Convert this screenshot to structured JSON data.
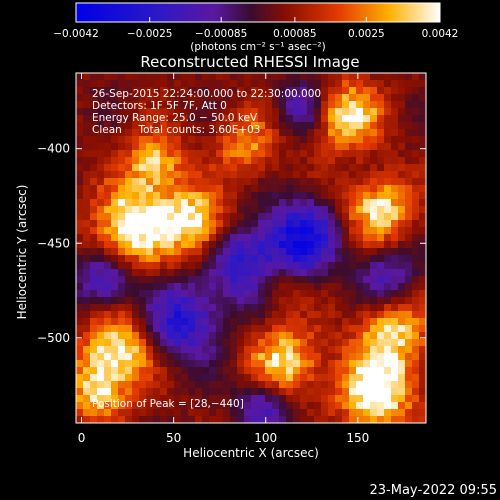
{
  "chart_data": {
    "type": "heatmap",
    "title": "Reconstructed RHESSI Image",
    "xlabel": "Heliocentric X (arcsec)",
    "ylabel": "Heliocentric Y (arcsec)",
    "xlim": [
      -3,
      187
    ],
    "ylim": [
      -545,
      -360
    ],
    "x_ticks": [
      0,
      50,
      100,
      150
    ],
    "x_tick_labels": [
      "0",
      "50",
      "100",
      "150"
    ],
    "y_ticks": [
      -400,
      -450,
      -500
    ],
    "y_tick_labels": [
      "−400",
      "−450",
      "−500"
    ],
    "colorbar": {
      "min": -0.0042,
      "max": 0.0042,
      "ticks": [
        -0.0042,
        -0.0025,
        -0.00085,
        0.00085,
        0.0025,
        0.0042
      ],
      "tick_labels": [
        "−0.0042",
        "−0.0025",
        "−0.00085",
        "0.00085",
        "0.0025",
        "0.0042"
      ],
      "unit_label": "(photons cm⁻² s⁻¹ asec⁻²)"
    },
    "annotations": [
      "26‑Sep‑2015 22:24:00.000 to 22:30:00.000",
      "Detectors: 1F 5F 7F, Att 0",
      "Energy Range: 25.0 − 50.0 keV",
      "Clean     Total counts: 3.60E+03"
    ],
    "peak_label": "Position of Peak = [28,−440]",
    "peak": [
      28,
      -440
    ],
    "sources": [
      {
        "x": 28,
        "y": -440,
        "amp": 1.0,
        "r": 14
      },
      {
        "x": 60,
        "y": -438,
        "amp": 0.85,
        "r": 12
      },
      {
        "x": 40,
        "y": -408,
        "amp": 0.7,
        "r": 11
      },
      {
        "x": 90,
        "y": -398,
        "amp": 0.55,
        "r": 11
      },
      {
        "x": 145,
        "y": -383,
        "amp": 0.85,
        "r": 12
      },
      {
        "x": 162,
        "y": -432,
        "amp": 0.8,
        "r": 12
      },
      {
        "x": 168,
        "y": -498,
        "amp": 0.7,
        "r": 13
      },
      {
        "x": 110,
        "y": -513,
        "amp": 0.8,
        "r": 13
      },
      {
        "x": 160,
        "y": -528,
        "amp": 1.0,
        "r": 14
      },
      {
        "x": 20,
        "y": -507,
        "amp": 0.85,
        "r": 13
      },
      {
        "x": 8,
        "y": -528,
        "amp": 0.7,
        "r": 11
      },
      {
        "x": 105,
        "y": -470,
        "amp": 0.45,
        "r": 10
      }
    ],
    "dips": [
      {
        "x": 120,
        "y": -447,
        "amp": -0.9,
        "r": 13
      },
      {
        "x": 92,
        "y": -462,
        "amp": -0.8,
        "r": 14
      },
      {
        "x": 55,
        "y": -492,
        "amp": -0.75,
        "r": 14
      },
      {
        "x": 12,
        "y": -470,
        "amp": -0.55,
        "r": 11
      },
      {
        "x": 100,
        "y": -535,
        "amp": -0.55,
        "r": 11
      },
      {
        "x": 165,
        "y": -468,
        "amp": -0.5,
        "r": 11
      },
      {
        "x": 120,
        "y": -378,
        "amp": -0.45,
        "r": 10
      }
    ]
  },
  "timestamp": "23‑May‑2022 09:55"
}
